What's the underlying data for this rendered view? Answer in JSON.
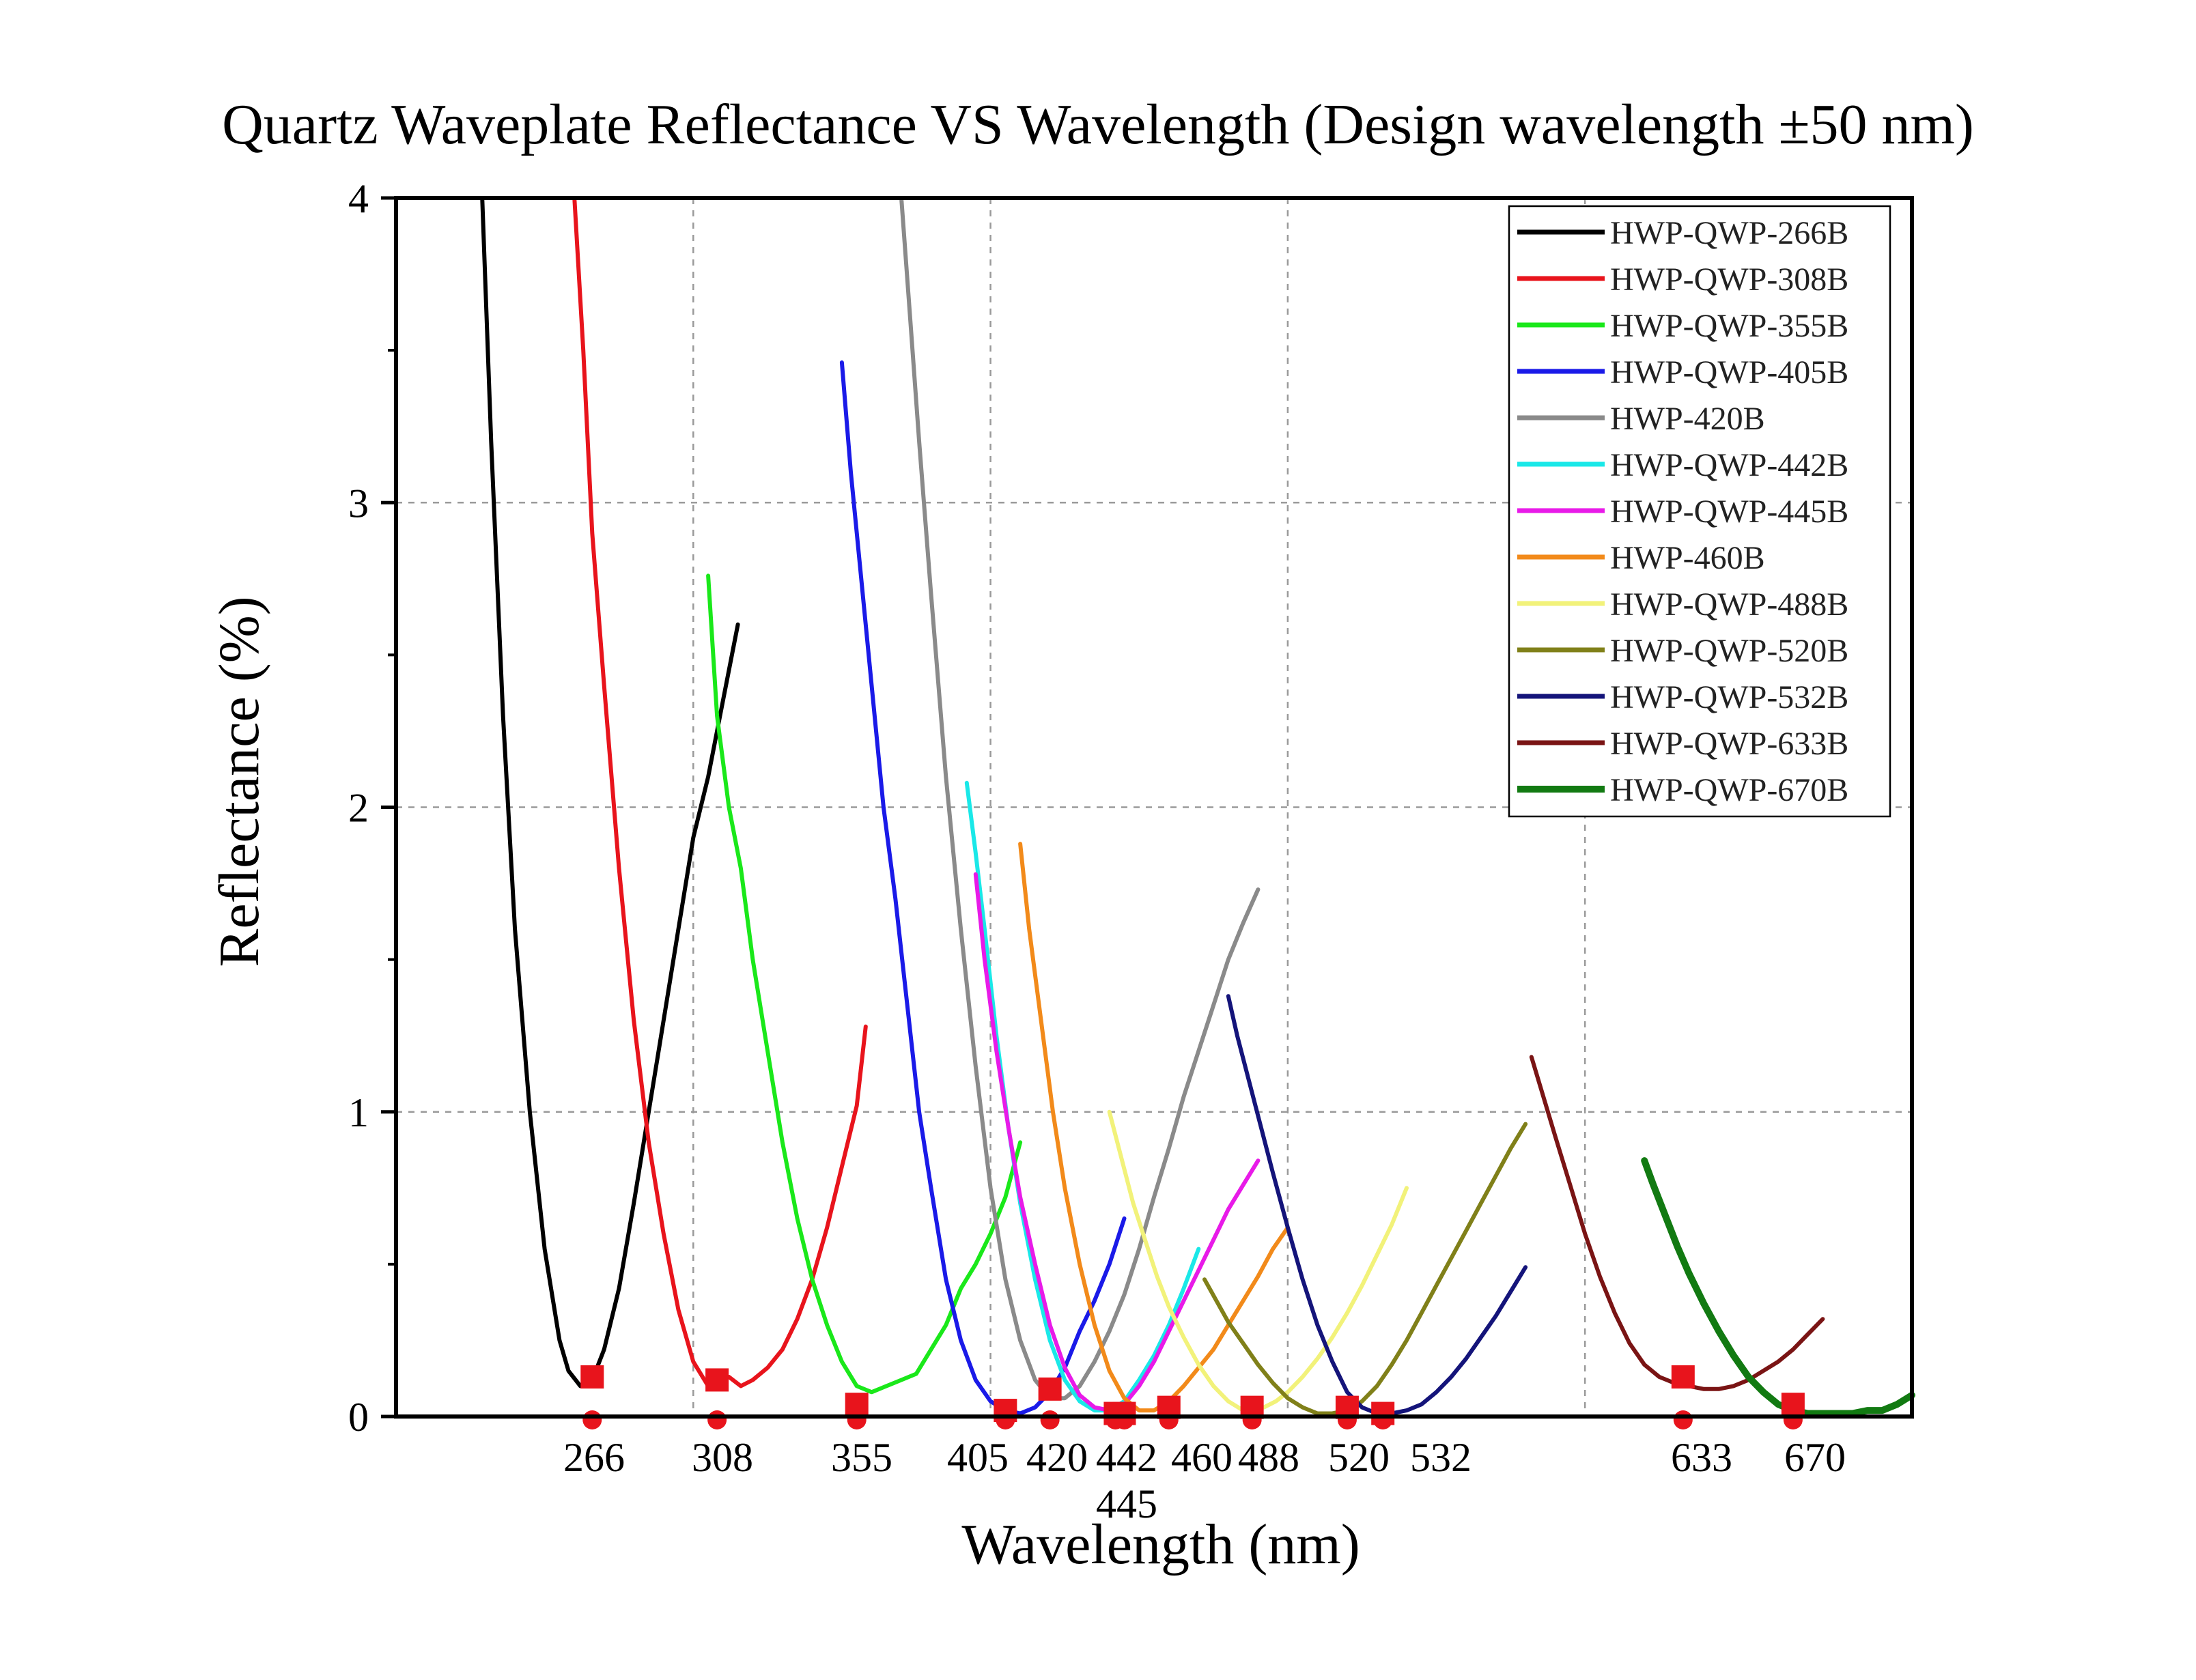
{
  "chart_data": {
    "type": "line",
    "title": "Quartz Waveplate Reflectance VS Wavelength (Design wavelength ±50 nm)",
    "xlabel": "Wavelength (nm)",
    "ylabel": "Reflectance (%)",
    "xlim": [
      200,
      710
    ],
    "ylim": [
      0,
      4
    ],
    "y_ticks": [
      0,
      1,
      2,
      3,
      4
    ],
    "y_tick_labels": [
      "0",
      "1",
      "2",
      "3",
      "4"
    ],
    "x_tick_labels": [
      {
        "value": 266,
        "label": "266"
      },
      {
        "value": 308,
        "label": "308"
      },
      {
        "value": 355,
        "label": "355"
      },
      {
        "value": 405,
        "label": "405"
      },
      {
        "value": 420,
        "label": "420"
      },
      {
        "value": 442,
        "label": "442"
      },
      {
        "value": 445,
        "label": "445"
      },
      {
        "value": 460,
        "label": "460"
      },
      {
        "value": 488,
        "label": "488"
      },
      {
        "value": 520,
        "label": "520"
      },
      {
        "value": 532,
        "label": "532"
      },
      {
        "value": 633,
        "label": "633"
      },
      {
        "value": 670,
        "label": "670"
      }
    ],
    "grid": true,
    "grid_x": [
      300,
      400,
      500,
      600
    ],
    "grid_y": [
      1,
      2,
      3
    ],
    "legend_position": "top-right",
    "series": [
      {
        "name": "HWP-QWP-266B",
        "color": "#000000",
        "x": [
          229,
          232,
          236,
          240,
          245,
          250,
          255,
          258,
          262,
          266,
          270,
          275,
          280,
          285,
          290,
          295,
          300,
          305,
          310,
          315
        ],
        "y": [
          4.0,
          3.2,
          2.3,
          1.6,
          1.0,
          0.55,
          0.25,
          0.15,
          0.1,
          0.12,
          0.22,
          0.42,
          0.7,
          1.0,
          1.3,
          1.6,
          1.9,
          2.1,
          2.35,
          2.6
        ]
      },
      {
        "name": "HWP-QWP-308B",
        "color": "#e8141c",
        "x": [
          260,
          263,
          266,
          270,
          275,
          280,
          285,
          290,
          295,
          300,
          305,
          308,
          312,
          316,
          320,
          325,
          330,
          335,
          340,
          345,
          350,
          355,
          358
        ],
        "y": [
          4.0,
          3.5,
          2.9,
          2.4,
          1.8,
          1.3,
          0.9,
          0.6,
          0.35,
          0.18,
          0.1,
          0.12,
          0.13,
          0.1,
          0.12,
          0.16,
          0.22,
          0.32,
          0.45,
          0.62,
          0.82,
          1.02,
          1.28
        ]
      },
      {
        "name": "HWP-QWP-355B",
        "color": "#1ae81a",
        "x": [
          305,
          308,
          312,
          316,
          320,
          325,
          330,
          335,
          340,
          345,
          350,
          355,
          360,
          365,
          370,
          375,
          380,
          385,
          390,
          395,
          400,
          405,
          410
        ],
        "y": [
          2.76,
          2.3,
          2.0,
          1.8,
          1.5,
          1.2,
          0.9,
          0.65,
          0.45,
          0.3,
          0.18,
          0.1,
          0.08,
          0.1,
          0.12,
          0.14,
          0.22,
          0.3,
          0.42,
          0.5,
          0.6,
          0.72,
          0.9
        ]
      },
      {
        "name": "HWP-QWP-405B",
        "color": "#1a1ae8",
        "x": [
          350,
          353,
          356,
          360,
          364,
          368,
          372,
          376,
          380,
          385,
          390,
          395,
          400,
          405,
          410,
          415,
          420,
          425,
          430,
          435,
          440,
          445
        ],
        "y": [
          3.46,
          3.1,
          2.8,
          2.4,
          2.0,
          1.7,
          1.35,
          1.0,
          0.75,
          0.45,
          0.25,
          0.12,
          0.05,
          0.02,
          0.01,
          0.03,
          0.08,
          0.16,
          0.28,
          0.38,
          0.5,
          0.65
        ]
      },
      {
        "name": "HWP-420B",
        "color": "#8a8a8a",
        "x": [
          370,
          373,
          376,
          380,
          385,
          390,
          395,
          400,
          405,
          410,
          415,
          420,
          425,
          430,
          435,
          440,
          445,
          450,
          455,
          460,
          465,
          470,
          475,
          480,
          485,
          490
        ],
        "y": [
          4.0,
          3.6,
          3.2,
          2.7,
          2.1,
          1.6,
          1.15,
          0.75,
          0.45,
          0.25,
          0.12,
          0.06,
          0.06,
          0.1,
          0.18,
          0.28,
          0.4,
          0.55,
          0.72,
          0.88,
          1.05,
          1.2,
          1.35,
          1.5,
          1.62,
          1.73
        ]
      },
      {
        "name": "HWP-QWP-442B",
        "color": "#1ae8e8",
        "x": [
          392,
          395,
          398,
          402,
          406,
          410,
          415,
          420,
          425,
          430,
          435,
          440,
          445,
          450,
          455,
          460,
          465,
          470
        ],
        "y": [
          2.08,
          1.85,
          1.6,
          1.25,
          0.95,
          0.7,
          0.45,
          0.25,
          0.12,
          0.05,
          0.02,
          0.02,
          0.05,
          0.12,
          0.2,
          0.3,
          0.42,
          0.55
        ]
      },
      {
        "name": "HWP-QWP-445B",
        "color": "#e81ae8",
        "x": [
          395,
          398,
          402,
          406,
          410,
          415,
          420,
          425,
          430,
          435,
          440,
          445,
          450,
          455,
          460,
          465,
          470,
          475,
          480,
          485,
          490
        ],
        "y": [
          1.78,
          1.5,
          1.2,
          0.95,
          0.72,
          0.5,
          0.3,
          0.16,
          0.07,
          0.03,
          0.02,
          0.04,
          0.1,
          0.18,
          0.28,
          0.38,
          0.48,
          0.58,
          0.68,
          0.76,
          0.84
        ]
      },
      {
        "name": "HWP-460B",
        "color": "#f28a1a",
        "x": [
          410,
          413,
          417,
          421,
          425,
          430,
          435,
          440,
          445,
          450,
          455,
          460,
          465,
          470,
          475,
          480,
          485,
          490,
          495,
          500
        ],
        "y": [
          1.88,
          1.6,
          1.3,
          1.0,
          0.75,
          0.5,
          0.3,
          0.15,
          0.06,
          0.02,
          0.02,
          0.05,
          0.1,
          0.16,
          0.22,
          0.3,
          0.38,
          0.46,
          0.55,
          0.62
        ]
      },
      {
        "name": "HWP-QWP-488B",
        "color": "#f2f27a",
        "x": [
          440,
          444,
          448,
          452,
          456,
          460,
          465,
          470,
          475,
          480,
          485,
          488,
          492,
          496,
          500,
          505,
          510,
          515,
          520,
          525,
          530,
          535,
          540
        ],
        "y": [
          1.0,
          0.85,
          0.7,
          0.58,
          0.46,
          0.36,
          0.26,
          0.17,
          0.1,
          0.05,
          0.02,
          0.02,
          0.03,
          0.05,
          0.08,
          0.13,
          0.19,
          0.26,
          0.34,
          0.43,
          0.53,
          0.63,
          0.75
        ]
      },
      {
        "name": "HWP-QWP-520B",
        "color": "#808019",
        "x": [
          472,
          476,
          480,
          485,
          490,
          495,
          500,
          505,
          510,
          515,
          520,
          525,
          530,
          535,
          540,
          545,
          550,
          555,
          560,
          565,
          570,
          575,
          580
        ],
        "y": [
          0.45,
          0.38,
          0.31,
          0.24,
          0.17,
          0.11,
          0.06,
          0.03,
          0.01,
          0.01,
          0.02,
          0.05,
          0.1,
          0.17,
          0.25,
          0.34,
          0.43,
          0.52,
          0.61,
          0.7,
          0.79,
          0.88,
          0.96
        ]
      },
      {
        "name": "HWP-QWP-532B",
        "color": "#14147a",
        "x": [
          480,
          483,
          487,
          491,
          495,
          500,
          505,
          510,
          515,
          520,
          525,
          530,
          535,
          540,
          545,
          550,
          555,
          560,
          565,
          570,
          575,
          580
        ],
        "y": [
          1.38,
          1.25,
          1.1,
          0.95,
          0.8,
          0.62,
          0.45,
          0.3,
          0.18,
          0.08,
          0.03,
          0.01,
          0.01,
          0.02,
          0.04,
          0.08,
          0.13,
          0.19,
          0.26,
          0.33,
          0.41,
          0.49
        ]
      },
      {
        "name": "HWP-QWP-633B",
        "color": "#7a1414",
        "x": [
          582,
          586,
          590,
          595,
          600,
          605,
          610,
          615,
          620,
          625,
          630,
          635,
          640,
          645,
          650,
          655,
          660,
          665,
          670,
          675,
          680
        ],
        "y": [
          1.18,
          1.05,
          0.92,
          0.76,
          0.6,
          0.46,
          0.34,
          0.24,
          0.17,
          0.13,
          0.11,
          0.1,
          0.09,
          0.09,
          0.1,
          0.12,
          0.15,
          0.18,
          0.22,
          0.27,
          0.32
        ]
      },
      {
        "name": "HWP-QWP-670B",
        "color": "#127a12",
        "x": [
          620,
          623,
          627,
          631,
          635,
          640,
          645,
          650,
          655,
          660,
          665,
          670,
          675,
          680,
          685,
          690,
          695,
          700,
          705,
          710
        ],
        "y": [
          0.84,
          0.76,
          0.66,
          0.56,
          0.47,
          0.37,
          0.28,
          0.2,
          0.13,
          0.08,
          0.04,
          0.02,
          0.01,
          0.01,
          0.01,
          0.01,
          0.02,
          0.02,
          0.04,
          0.07
        ]
      }
    ],
    "markers": {
      "squares": [
        {
          "x": 266,
          "y": 0.13
        },
        {
          "x": 308,
          "y": 0.12
        },
        {
          "x": 355,
          "y": 0.04
        },
        {
          "x": 405,
          "y": 0.02
        },
        {
          "x": 420,
          "y": 0.09
        },
        {
          "x": 442,
          "y": 0.01
        },
        {
          "x": 445,
          "y": 0.01
        },
        {
          "x": 460,
          "y": 0.03
        },
        {
          "x": 488,
          "y": 0.03
        },
        {
          "x": 520,
          "y": 0.03
        },
        {
          "x": 532,
          "y": 0.01
        },
        {
          "x": 633,
          "y": 0.13
        },
        {
          "x": 670,
          "y": 0.04
        }
      ],
      "circles": [
        {
          "x": 266,
          "y": 0
        },
        {
          "x": 308,
          "y": 0
        },
        {
          "x": 355,
          "y": 0
        },
        {
          "x": 405,
          "y": 0
        },
        {
          "x": 420,
          "y": 0
        },
        {
          "x": 442,
          "y": 0
        },
        {
          "x": 445,
          "y": 0
        },
        {
          "x": 460,
          "y": 0
        },
        {
          "x": 488,
          "y": 0
        },
        {
          "x": 520,
          "y": 0
        },
        {
          "x": 532,
          "y": 0
        },
        {
          "x": 633,
          "y": 0
        },
        {
          "x": 670,
          "y": 0
        }
      ],
      "color": "#e8141c"
    }
  }
}
